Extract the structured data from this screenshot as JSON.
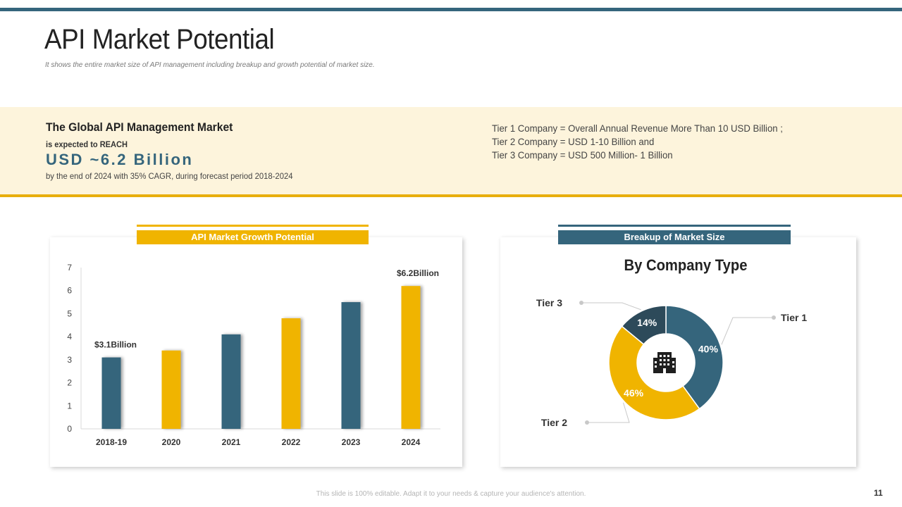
{
  "page": {
    "title": "API Market Potential",
    "subtitle": "It shows the entire market size of API management including breakup and growth potential of market size.",
    "footer": "This slide is 100% editable. Adapt it to your needs & capture your audience's attention.",
    "page_number": "11"
  },
  "market": {
    "heading": "The Global API Management Market",
    "expect": "is expected to REACH",
    "value": "USD ~6.2 Billion",
    "note": "by the end of 2024 with 35% CAGR, during forecast period 2018-2024"
  },
  "tiers": [
    "Tier 1 Company = Overall Annual Revenue More Than 10 USD Billion ;",
    "Tier 2 Company = USD 1-10 Billion and",
    "Tier 3 Company = USD 500 Million- 1 Billion"
  ],
  "colors": {
    "teal": "#35657c",
    "gold": "#f0b400",
    "dark": "#2d4a5a"
  },
  "chart_data": [
    {
      "type": "bar",
      "title": "API Market Growth Potential",
      "categories": [
        "2018-19",
        "2020",
        "2021",
        "2022",
        "2023",
        "2024"
      ],
      "values": [
        3.1,
        3.4,
        4.1,
        4.8,
        5.5,
        6.2
      ],
      "bar_colors": [
        "#35657c",
        "#f0b400",
        "#35657c",
        "#f0b400",
        "#35657c",
        "#f0b400"
      ],
      "ylim": [
        0,
        7
      ],
      "yticks": [
        0,
        1,
        2,
        3,
        4,
        5,
        6,
        7
      ],
      "annotations": [
        {
          "category": "2018-19",
          "text": "$3.1Billion"
        },
        {
          "category": "2024",
          "text": "$6.2Billion"
        }
      ],
      "xlabel": "",
      "ylabel": ""
    },
    {
      "type": "pie",
      "header": "Breakup of  Market Size",
      "title": "By Company Type",
      "slices": [
        {
          "label": "Tier 1",
          "value": 40,
          "text": "40%",
          "color": "#35657c"
        },
        {
          "label": "Tier 2",
          "value": 46,
          "text": "46%",
          "color": "#f0b400"
        },
        {
          "label": "Tier 3",
          "value": 14,
          "text": "14%",
          "color": "#2d4a5a"
        }
      ],
      "center_icon": "building-icon"
    }
  ]
}
